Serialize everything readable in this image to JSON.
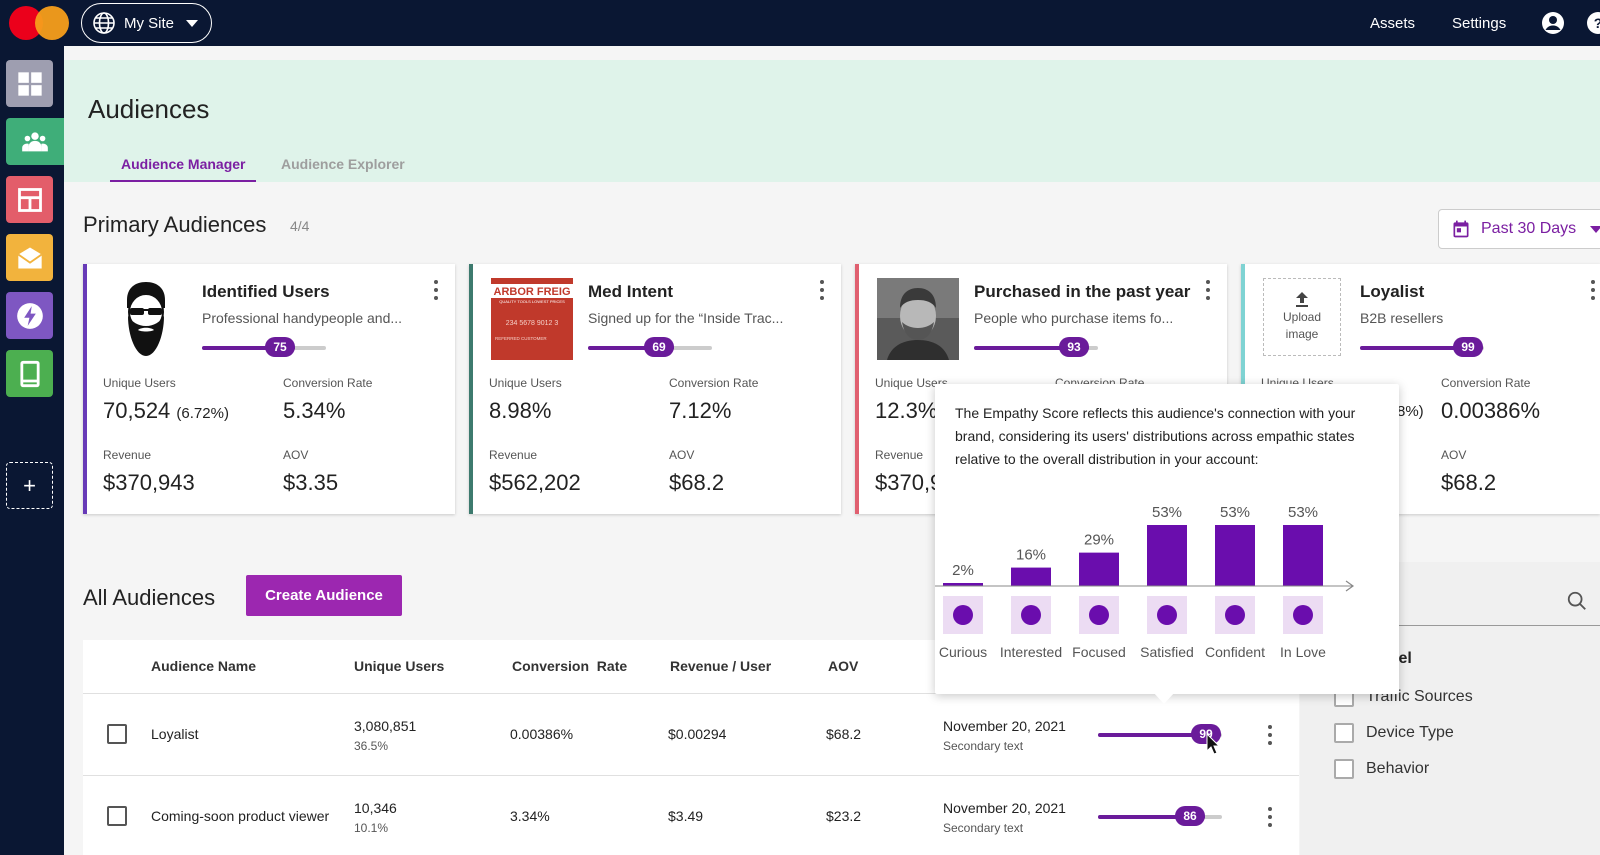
{
  "topbar": {
    "site_label": "My Site",
    "links": [
      "Assets",
      "Settings"
    ]
  },
  "header": {
    "title": "Audiences",
    "tabs": [
      {
        "label": "Audience Manager",
        "active": true
      },
      {
        "label": "Audience Explorer",
        "active": false
      }
    ]
  },
  "primary": {
    "title": "Primary Audiences",
    "count": "4/4",
    "date_range": "Past 30 Days",
    "cards": [
      {
        "title": "Identified Users",
        "desc": "Professional handypeople and...",
        "score": "75",
        "score_value": 75,
        "accent": "#673ab7",
        "labels": [
          "Unique Users",
          "Conversion Rate",
          "Revenue",
          "AOV"
        ],
        "unique_users": "70,524",
        "unique_users_pct": "(6.72%)",
        "conversion_rate": "5.34%",
        "revenue": "$370,943",
        "aov": "$3.35"
      },
      {
        "title": "Med Intent",
        "desc": "Signed up for the “Inside Trac...",
        "score": "69",
        "score_value": 69,
        "accent": "#3d7a6e",
        "image_text": "ARBOR FREIG",
        "image_subtext": "QUALITY TOOLS LOWEST PRICES",
        "image_number": "234 5678 9012 3",
        "image_caption": "REFERRED CUSTOMER",
        "labels": [
          "Unique Users",
          "Conversion Rate",
          "Revenue",
          "AOV"
        ],
        "unique_users": "8.98%",
        "conversion_rate": "7.12%",
        "revenue": "$562,202",
        "aov": "$68.2"
      },
      {
        "title": "Purchased in the past year",
        "desc": "People who purchase items fo...",
        "score": "93",
        "score_value": 93,
        "accent": "#e06070",
        "labels": [
          "Unique Users",
          "Conversion Rate",
          "Revenue"
        ],
        "unique_users": "12.3%",
        "revenue": "$370,9"
      },
      {
        "title": "Loyalist",
        "desc": "B2B resellers",
        "score": "99",
        "score_value": 99,
        "accent": "#7fd3d3",
        "upload_label": "Upload image",
        "labels": [
          "Unique Users",
          "Conversion Rate",
          "AOV"
        ],
        "unique_users_pct": "8%)",
        "conversion_rate": "0.00386%",
        "aov": "$68.2"
      }
    ]
  },
  "all": {
    "title": "All Audiences",
    "create_label": "Create Audience",
    "columns": [
      "Audience Name",
      "Unique Users",
      "Conversion  Rate",
      "Revenue / User",
      "AOV"
    ],
    "rows": [
      {
        "name": "Loyalist",
        "users": "3,080,851",
        "users_pct": "36.5%",
        "conv": "0.00386%",
        "rev_user": "$0.00294",
        "aov": "$68.2",
        "date": "November 20, 2021",
        "secondary": "Secondary text",
        "score": "99",
        "score_value": 99
      },
      {
        "name": "Coming-soon product viewer",
        "users": "10,346",
        "users_pct": "10.1%",
        "conv": "3.34%",
        "rev_user": "$3.49",
        "aov": "$23.2",
        "date": "November 20, 2021",
        "secondary": "Secondary text",
        "score": "86",
        "score_value": 86
      }
    ]
  },
  "filters": {
    "label": "Label",
    "items": [
      "Traffic Sources",
      "Device Type",
      "Behavior"
    ]
  },
  "tooltip": {
    "text": "The Empathy Score reflects this audience's connection with your brand, considering its users' distributions across empathic states relative to the overall distribution in your account:"
  },
  "chart_data": {
    "type": "bar",
    "categories": [
      "Curious",
      "Interested",
      "Focused",
      "Satisfied",
      "Confident",
      "In Love"
    ],
    "values": [
      2,
      16,
      29,
      53,
      53,
      53
    ],
    "labels": [
      "2%",
      "16%",
      "29%",
      "53%",
      "53%",
      "53%"
    ],
    "icons": [
      "question-head-icon",
      "lightbulb-head-icon",
      "target-head-icon",
      "check-head-icon",
      "exclamation-head-icon",
      "heart-head-icon"
    ],
    "title": "",
    "xlabel": "",
    "ylabel": "",
    "ylim": [
      0,
      53
    ],
    "color": "#6a0dad"
  },
  "colors": {
    "accent": "#7b1fa2",
    "nav": "#0a1733",
    "header_bg": "#dff3ea"
  }
}
